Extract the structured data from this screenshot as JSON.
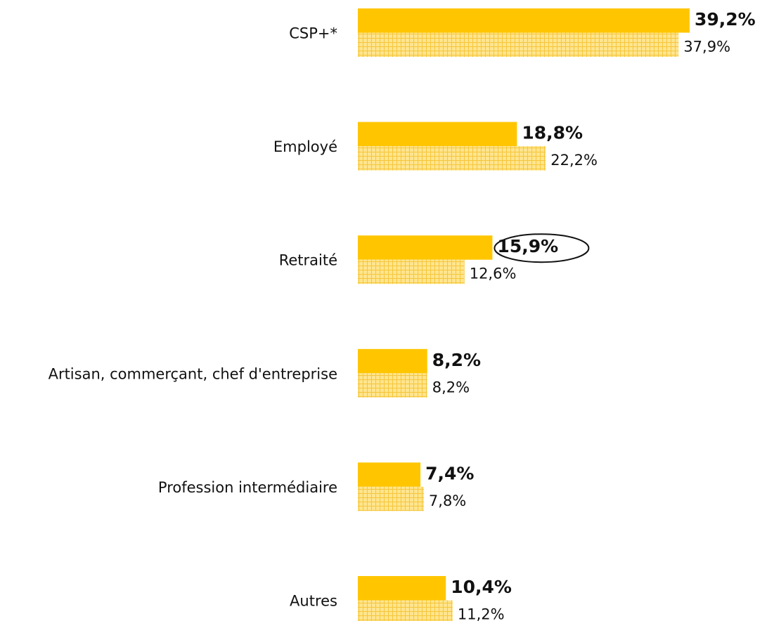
{
  "chart_data": {
    "type": "bar",
    "orientation": "horizontal",
    "categories": [
      "CSP+*",
      "Employé",
      "Retraité",
      "Artisan, commerçant, chef d'entreprise",
      "Profession intermédiaire",
      "Autres"
    ],
    "series": [
      {
        "color": "#ffc600",
        "values": [
          39.2,
          18.8,
          15.9,
          8.2,
          7.4,
          10.4
        ],
        "value_labels": [
          "39,2%",
          "18,8%",
          "15,9%",
          "8,2%",
          "7,4%",
          "10,4%"
        ]
      },
      {
        "color": "#ffe27f",
        "pattern": "grid",
        "values": [
          37.9,
          22.2,
          12.6,
          8.2,
          7.8,
          11.2
        ],
        "value_labels": [
          "37,9%",
          "22,2%",
          "12,6%",
          "8,2%",
          "7,8%",
          "11,2%"
        ]
      }
    ]
  }
}
